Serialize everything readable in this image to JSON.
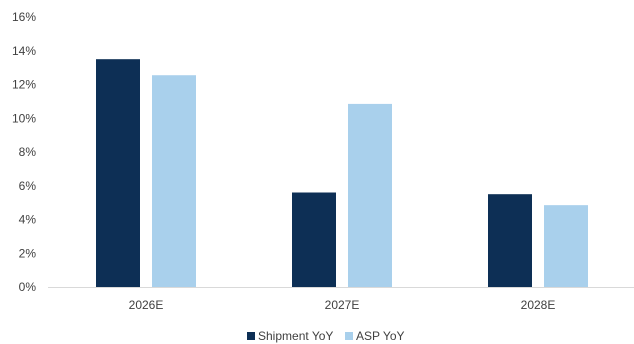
{
  "chart_data": {
    "type": "bar",
    "categories": [
      "2026E",
      "2027E",
      "2028E"
    ],
    "series": [
      {
        "name": "Shipment YoY",
        "color": "#0d2f55",
        "values": [
          13.5,
          5.6,
          5.5
        ]
      },
      {
        "name": "ASP YoY",
        "color": "#a9d0ec",
        "values": [
          12.55,
          10.85,
          4.85
        ]
      }
    ],
    "ylim": [
      0,
      16
    ],
    "yticks": [
      0,
      2,
      4,
      6,
      8,
      10,
      12,
      14,
      16
    ],
    "ytick_labels": [
      "0%",
      "2%",
      "4%",
      "6%",
      "8%",
      "10%",
      "12%",
      "14%",
      "16%"
    ],
    "y_unit": "%",
    "grid": false,
    "legend_position": "bottom"
  }
}
